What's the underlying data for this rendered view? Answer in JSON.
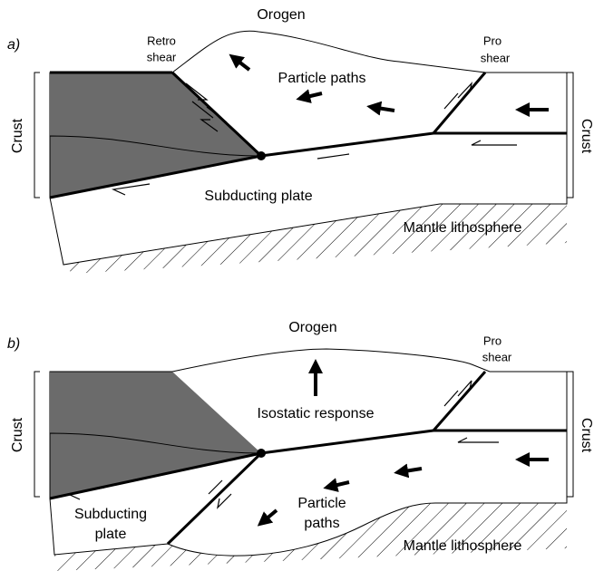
{
  "panels": [
    {
      "label": "a)",
      "orogen": "Orogen",
      "retro_shear": [
        "Retro",
        "shear"
      ],
      "pro_shear": [
        "Pro",
        "shear"
      ],
      "particle_paths": [
        "Particle paths"
      ],
      "crust_left": "Crust",
      "crust_right": "Crust",
      "subducting_plate": [
        "Subducting plate"
      ],
      "mantle": "Mantle lithosphere"
    },
    {
      "label": "b)",
      "orogen": "Orogen",
      "pro_shear": [
        "Pro",
        "shear"
      ],
      "isostatic_response": "Isostatic response",
      "crust_left": "Crust",
      "crust_right": "Crust",
      "subducting_plate": [
        "Subducting",
        "plate"
      ],
      "particle_paths": [
        "Particle",
        "paths"
      ],
      "mantle": "Mantle lithosphere"
    }
  ]
}
